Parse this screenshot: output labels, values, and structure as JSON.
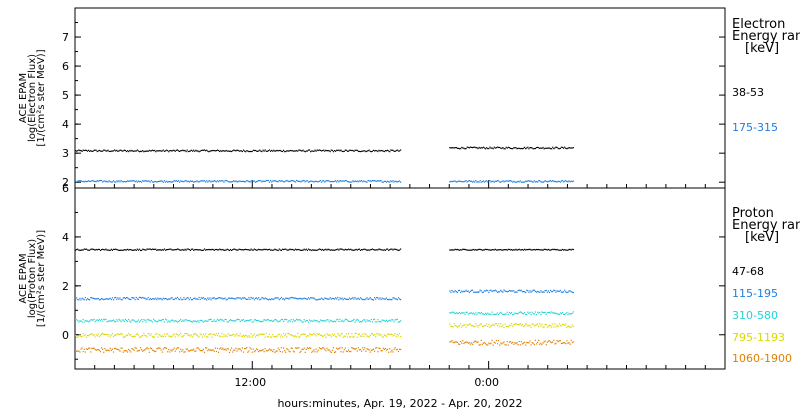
{
  "chart_data": [
    {
      "type": "scatter",
      "panel": "electron",
      "ylabel_lines": [
        "ACE EPAM",
        "log(Electron Flux)",
        "[1/(cm²s ster MeV)]"
      ],
      "ylim": [
        1.8,
        8.0
      ],
      "yticks": [
        2,
        3,
        4,
        5,
        6,
        7
      ],
      "legend_title": [
        "Electron",
        "Energy ran",
        "[keV]"
      ],
      "series": [
        {
          "name": "38-53",
          "color": "#000000",
          "segments": [
            {
              "start": 0.0,
              "end": 16.5,
              "level": 3.1,
              "noise": 0.03
            },
            {
              "start": 19.0,
              "end": 25.3,
              "level": 3.2,
              "noise": 0.03
            }
          ]
        },
        {
          "name": "175-315",
          "color": "#1e7ee0",
          "segments": [
            {
              "start": 0.0,
              "end": 16.5,
              "level": 2.05,
              "noise": 0.03
            },
            {
              "start": 19.0,
              "end": 25.3,
              "level": 2.05,
              "noise": 0.03
            }
          ]
        }
      ]
    },
    {
      "type": "scatter",
      "panel": "proton",
      "ylabel_lines": [
        "ACE EPAM",
        "log(Proton Flux)",
        "[1/(cm²s ster MeV)]"
      ],
      "ylim": [
        -1.4,
        6.0
      ],
      "yticks": [
        0,
        2,
        4,
        6
      ],
      "legend_title": [
        "Proton",
        "Energy ran",
        "[keV]"
      ],
      "series": [
        {
          "name": "47-68",
          "color": "#000000",
          "segments": [
            {
              "start": 0.0,
              "end": 16.5,
              "level": 3.5,
              "noise": 0.03
            },
            {
              "start": 19.0,
              "end": 25.3,
              "level": 3.5,
              "noise": 0.02
            }
          ]
        },
        {
          "name": "115-195",
          "color": "#1e7ee0",
          "segments": [
            {
              "start": 0.0,
              "end": 16.5,
              "level": 1.5,
              "noise": 0.05
            },
            {
              "start": 19.0,
              "end": 25.3,
              "level": 1.8,
              "noise": 0.05
            }
          ]
        },
        {
          "name": "310-580",
          "color": "#22d3d3",
          "segments": [
            {
              "start": 0.0,
              "end": 16.5,
              "level": 0.6,
              "noise": 0.06
            },
            {
              "start": 19.0,
              "end": 25.3,
              "level": 0.9,
              "noise": 0.06
            }
          ]
        },
        {
          "name": "795-1193",
          "color": "#d8d800",
          "segments": [
            {
              "start": 0.0,
              "end": 16.5,
              "level": 0.0,
              "noise": 0.08
            },
            {
              "start": 19.0,
              "end": 25.3,
              "level": 0.4,
              "noise": 0.08
            }
          ]
        },
        {
          "name": "1060-1900",
          "color": "#e08000",
          "segments": [
            {
              "start": 0.0,
              "end": 16.5,
              "level": -0.6,
              "noise": 0.1
            },
            {
              "start": 19.0,
              "end": 25.3,
              "level": -0.3,
              "noise": 0.1
            }
          ]
        }
      ]
    }
  ],
  "x_axis": {
    "xlim": [
      0,
      33
    ],
    "ticks": [
      {
        "value": 8.9,
        "label": "12:00"
      },
      {
        "value": 20.9,
        "label": "0:00"
      }
    ],
    "xlabel": "hours:minutes, Apr. 19, 2022 - Apr. 20, 2022"
  }
}
